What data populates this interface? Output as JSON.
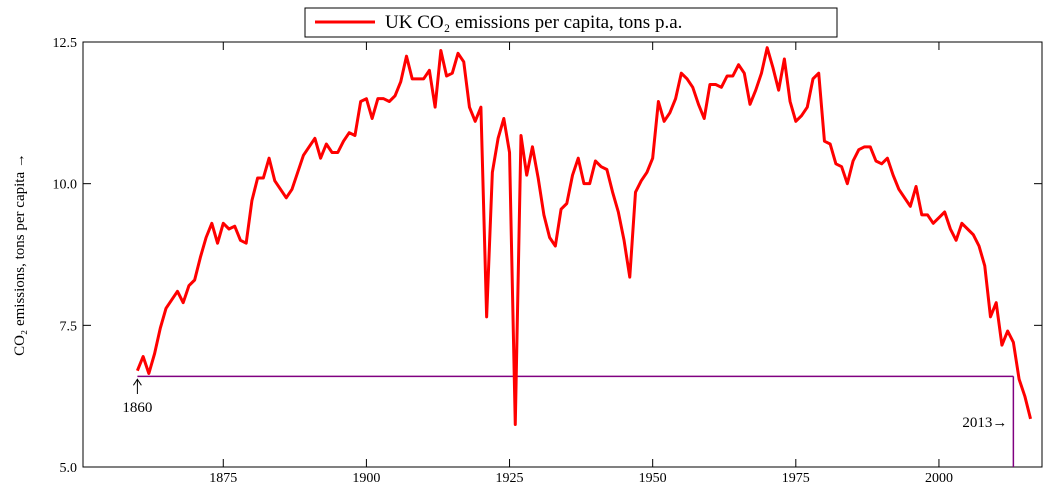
{
  "chart_data": {
    "type": "line",
    "title": "UK CO₂ emissions per capita, tons p.a.",
    "y_label": "CO₂ emissions,  tons per capita →",
    "xlim": [
      1850.5,
      2018
    ],
    "xticks": [
      1875,
      1900,
      1925,
      1950,
      1975,
      2000
    ],
    "ylim": [
      5,
      12.5
    ],
    "yticks": [
      {
        "value": 5,
        "label": "5.0"
      },
      7.5,
      {
        "value": 10,
        "label": "10.0"
      },
      12.5
    ],
    "x": [
      1860,
      1861,
      1862,
      1863,
      1864,
      1865,
      1866,
      1867,
      1868,
      1869,
      1870,
      1871,
      1872,
      1873,
      1874,
      1875,
      1876,
      1877,
      1878,
      1879,
      1880,
      1881,
      1882,
      1883,
      1884,
      1885,
      1886,
      1887,
      1888,
      1889,
      1890,
      1891,
      1892,
      1893,
      1894,
      1895,
      1896,
      1897,
      1898,
      1899,
      1900,
      1901,
      1902,
      1903,
      1904,
      1905,
      1906,
      1907,
      1908,
      1909,
      1910,
      1911,
      1912,
      1913,
      1914,
      1915,
      1916,
      1917,
      1918,
      1919,
      1920,
      1921,
      1922,
      1923,
      1924,
      1925,
      1926,
      1927,
      1928,
      1929,
      1930,
      1931,
      1932,
      1933,
      1934,
      1935,
      1936,
      1937,
      1938,
      1939,
      1940,
      1941,
      1942,
      1943,
      1944,
      1945,
      1946,
      1947,
      1948,
      1949,
      1950,
      1951,
      1952,
      1953,
      1954,
      1955,
      1956,
      1957,
      1958,
      1959,
      1960,
      1961,
      1962,
      1963,
      1964,
      1965,
      1966,
      1967,
      1968,
      1969,
      1970,
      1971,
      1972,
      1973,
      1974,
      1975,
      1976,
      1977,
      1978,
      1979,
      1980,
      1981,
      1982,
      1983,
      1984,
      1985,
      1986,
      1987,
      1988,
      1989,
      1990,
      1991,
      1992,
      1993,
      1994,
      1995,
      1996,
      1997,
      1998,
      1999,
      2000,
      2001,
      2002,
      2003,
      2004,
      2005,
      2006,
      2007,
      2008,
      2009,
      2010,
      2011,
      2012,
      2013,
      2014,
      2015,
      2016
    ],
    "series": [
      {
        "name": "UK CO₂ emissions per capita, tons p.a.",
        "color": "#ff0000",
        "values": [
          6.7,
          6.95,
          6.65,
          7.0,
          7.45,
          7.8,
          7.95,
          8.1,
          7.9,
          8.2,
          8.3,
          8.7,
          9.05,
          9.3,
          8.95,
          9.3,
          9.2,
          9.25,
          9.0,
          8.95,
          9.7,
          10.1,
          10.1,
          10.45,
          10.05,
          9.9,
          9.75,
          9.9,
          10.2,
          10.5,
          10.65,
          10.8,
          10.45,
          10.7,
          10.55,
          10.55,
          10.75,
          10.9,
          10.85,
          11.45,
          11.5,
          11.15,
          11.5,
          11.5,
          11.45,
          11.55,
          11.8,
          12.25,
          11.85,
          11.85,
          11.85,
          12.0,
          11.35,
          12.35,
          11.9,
          11.95,
          12.3,
          12.15,
          11.35,
          11.1,
          11.35,
          7.65,
          10.2,
          10.8,
          11.15,
          10.55,
          5.75,
          10.85,
          10.15,
          10.65,
          10.1,
          9.45,
          9.05,
          8.9,
          9.55,
          9.65,
          10.15,
          10.45,
          10.0,
          10.0,
          10.4,
          10.3,
          10.25,
          9.85,
          9.5,
          9.0,
          8.35,
          9.85,
          10.05,
          10.2,
          10.45,
          11.45,
          11.1,
          11.25,
          11.5,
          11.95,
          11.85,
          11.7,
          11.4,
          11.15,
          11.75,
          11.75,
          11.7,
          11.9,
          11.9,
          12.1,
          11.95,
          11.4,
          11.65,
          11.95,
          12.4,
          12.05,
          11.65,
          12.2,
          11.45,
          11.1,
          11.2,
          11.35,
          11.85,
          11.95,
          10.75,
          10.7,
          10.35,
          10.3,
          10.0,
          10.4,
          10.6,
          10.65,
          10.65,
          10.4,
          10.35,
          10.45,
          10.15,
          9.9,
          9.75,
          9.6,
          9.95,
          9.45,
          9.45,
          9.3,
          9.4,
          9.5,
          9.2,
          9.0,
          9.3,
          9.2,
          9.1,
          8.9,
          8.55,
          7.65,
          7.9,
          7.15,
          7.4,
          7.2,
          6.55,
          6.25,
          5.85
        ]
      }
    ],
    "reference": {
      "y": 6.6,
      "x": [
        1860,
        2013
      ],
      "color": "#800080"
    },
    "annotations": [
      {
        "text": "1860",
        "x": 1860
      },
      {
        "text": "2013→",
        "x": 2013
      }
    ]
  }
}
